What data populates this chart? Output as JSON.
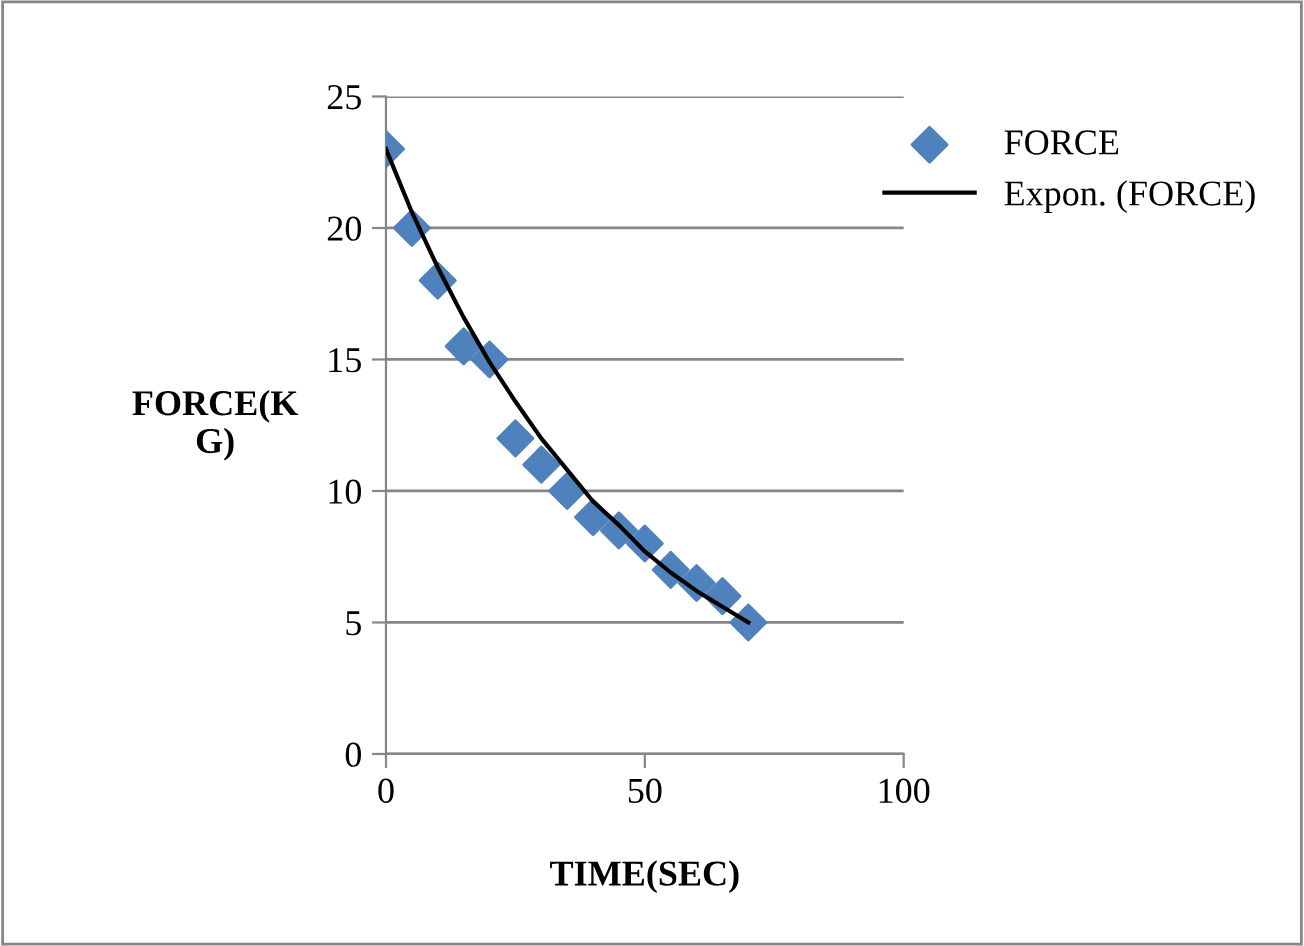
{
  "chart_data": {
    "type": "scatter",
    "xlabel": "TIME(SEC)",
    "ylabel": "FORCE(K\nG)",
    "xlim": [
      0,
      100
    ],
    "xticks": [
      0,
      50,
      100
    ],
    "ylim": [
      0,
      25
    ],
    "yticks": [
      0,
      5,
      10,
      15,
      20,
      25
    ],
    "grid": "y",
    "legend": "top right",
    "series": [
      {
        "name": "FORCE",
        "color": "#4f81bd",
        "marker": "diamond",
        "x": [
          0,
          5,
          10,
          15,
          20,
          25,
          30,
          35,
          40,
          45,
          50,
          55,
          60,
          65,
          70
        ],
        "values": [
          23,
          20,
          18,
          15.5,
          15,
          12,
          11,
          10,
          9,
          8.5,
          8,
          7,
          6.5,
          6,
          5
        ]
      },
      {
        "name": "Expon. (FORCE)",
        "type": "line",
        "color": "#000000",
        "marker": "none",
        "line_style": "solid",
        "x": [
          0,
          5,
          10,
          15,
          20,
          25,
          30,
          35,
          40,
          45,
          50,
          55,
          60,
          65,
          70
        ],
        "values": [
          23,
          20.6,
          18.5,
          16.6,
          14.9,
          13.4,
          12.0,
          10.8,
          9.6,
          8.7,
          7.7,
          6.9,
          6.2,
          5.6,
          5
        ]
      }
    ]
  }
}
